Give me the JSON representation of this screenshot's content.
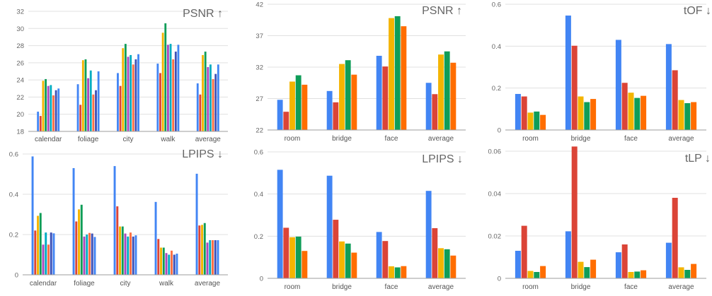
{
  "colors": {
    "c1": "#4285F4",
    "c2": "#DB4437",
    "c3": "#F4B400",
    "c4": "#0F9D58",
    "c5": "#AB47BC",
    "c6": "#00ACC1",
    "c7": "#FF7043",
    "c8": "#3F51B5",
    "axis": "#9e9e9e",
    "grid": "#e0e0e0"
  },
  "chart_data": [
    {
      "type": "bar",
      "title": "PSNR ↑",
      "categories": [
        "calendar",
        "foliage",
        "city",
        "walk",
        "average"
      ],
      "ylim": [
        18,
        32
      ],
      "yticks": [
        "18",
        "20",
        "22",
        "24",
        "26",
        "28",
        "30",
        "32"
      ],
      "grid": true,
      "legend": "none",
      "bar_colors": [
        "#4285F4",
        "#DB4437",
        "#F4B400",
        "#0F9D58",
        "#AB47BC",
        "#00ACC1",
        "#FF7043",
        "#3F51B5"
      ],
      "series": [
        {
          "values": [
            20.3,
            23.5,
            24.8,
            25.9,
            23.6
          ]
        },
        {
          "values": [
            19.8,
            21.1,
            23.3,
            24.8,
            22.3
          ]
        },
        {
          "values": [
            23.9,
            26.3,
            27.7,
            29.5,
            26.9
          ]
        },
        {
          "values": [
            24.1,
            26.4,
            28.2,
            30.6,
            27.3
          ]
        },
        {
          "values": [
            23.3,
            24.2,
            26.7,
            28.1,
            25.5
          ]
        },
        {
          "values": [
            23.4,
            25.1,
            26.9,
            28.2,
            25.8
          ]
        },
        {
          "values": [
            22.2,
            22.3,
            25.8,
            26.4,
            24.1
          ]
        },
        {
          "values": [
            22.8,
            22.8,
            26.4,
            27.3,
            24.7
          ]
        },
        {
          "values": [
            23.0,
            25.0,
            27.0,
            28.1,
            25.8
          ]
        }
      ]
    },
    {
      "type": "bar",
      "title": "PSNR ↑",
      "categories": [
        "room",
        "bridge",
        "face",
        "average"
      ],
      "ylim": [
        22,
        42
      ],
      "yticks": [
        "22",
        "27",
        "32",
        "37",
        "42"
      ],
      "grid": true,
      "legend": "none",
      "bar_colors": [
        "#4285F4",
        "#DB4437",
        "#F4B400",
        "#0F9D58",
        "#FF6D00"
      ],
      "series": [
        {
          "values": [
            26.8,
            28.2,
            33.8,
            29.5
          ]
        },
        {
          "values": [
            24.9,
            26.4,
            32.1,
            27.7
          ]
        },
        {
          "values": [
            29.7,
            32.5,
            39.8,
            34.0
          ]
        },
        {
          "values": [
            30.7,
            33.1,
            40.1,
            34.5
          ]
        },
        {
          "values": [
            29.2,
            30.8,
            38.5,
            32.7
          ]
        }
      ]
    },
    {
      "type": "bar",
      "title": "tOF ↓",
      "categories": [
        "room",
        "bridge",
        "face",
        "average"
      ],
      "ylim": [
        0,
        0.6
      ],
      "yticks": [
        "0",
        "0.2",
        "0.4",
        "0.6"
      ],
      "grid": true,
      "legend": "none",
      "bar_colors": [
        "#4285F4",
        "#DB4437",
        "#F4B400",
        "#0F9D58",
        "#FF6D00"
      ],
      "series": [
        {
          "values": [
            0.172,
            0.546,
            0.43,
            0.41
          ]
        },
        {
          "values": [
            0.16,
            0.402,
            0.225,
            0.285
          ]
        },
        {
          "values": [
            0.083,
            0.16,
            0.178,
            0.143
          ]
        },
        {
          "values": [
            0.088,
            0.133,
            0.153,
            0.128
          ]
        },
        {
          "values": [
            0.072,
            0.148,
            0.163,
            0.133
          ]
        }
      ]
    },
    {
      "type": "bar",
      "title": "LPIPS ↓",
      "categories": [
        "calendar",
        "foliage",
        "city",
        "walk",
        "average"
      ],
      "ylim": [
        0,
        0.6
      ],
      "yticks": [
        "0",
        "0.2",
        "0.4",
        "0.6"
      ],
      "grid": true,
      "legend": "none",
      "bar_colors": [
        "#4285F4",
        "#DB4437",
        "#F4B400",
        "#0F9D58",
        "#AB47BC",
        "#00ACC1",
        "#FF7043",
        "#3F51B5"
      ],
      "series": [
        {
          "values": [
            0.588,
            0.53,
            0.54,
            0.362,
            0.502
          ]
        },
        {
          "values": [
            0.22,
            0.265,
            0.34,
            0.178,
            0.245
          ]
        },
        {
          "values": [
            0.293,
            0.325,
            0.24,
            0.135,
            0.248
          ]
        },
        {
          "values": [
            0.307,
            0.348,
            0.24,
            0.135,
            0.257
          ]
        },
        {
          "values": [
            0.15,
            0.19,
            0.205,
            0.108,
            0.16
          ]
        },
        {
          "values": [
            0.21,
            0.2,
            0.19,
            0.1,
            0.172
          ]
        },
        {
          "values": [
            0.15,
            0.208,
            0.21,
            0.12,
            0.172
          ]
        },
        {
          "values": [
            0.21,
            0.205,
            0.19,
            0.1,
            0.172
          ]
        },
        {
          "values": [
            0.206,
            0.188,
            0.196,
            0.105,
            0.172
          ]
        }
      ]
    },
    {
      "type": "bar",
      "title": "LPIPS ↓",
      "categories": [
        "room",
        "bridge",
        "face",
        "average"
      ],
      "ylim": [
        0,
        0.6
      ],
      "yticks": [
        "0",
        "0.2",
        "0.4",
        "0.6"
      ],
      "grid": true,
      "legend": "none",
      "bar_colors": [
        "#4285F4",
        "#DB4437",
        "#F4B400",
        "#0F9D58",
        "#FF6D00"
      ],
      "series": [
        {
          "values": [
            0.515,
            0.487,
            0.22,
            0.415
          ]
        },
        {
          "values": [
            0.24,
            0.278,
            0.177,
            0.238
          ]
        },
        {
          "values": [
            0.195,
            0.175,
            0.057,
            0.143
          ]
        },
        {
          "values": [
            0.198,
            0.165,
            0.052,
            0.138
          ]
        },
        {
          "values": [
            0.13,
            0.122,
            0.058,
            0.108
          ]
        }
      ]
    },
    {
      "type": "bar",
      "title": "tLP ↓",
      "categories": [
        "room",
        "bridge",
        "face",
        "average"
      ],
      "ylim": [
        0,
        0.06
      ],
      "yticks": [
        "0",
        "0.02",
        "0.04",
        "0.06"
      ],
      "grid": true,
      "legend": "none",
      "bar_colors": [
        "#4285F4",
        "#DB4437",
        "#F4B400",
        "#0F9D58",
        "#FF6D00"
      ],
      "series": [
        {
          "values": [
            0.013,
            0.0222,
            0.0123,
            0.0168
          ]
        },
        {
          "values": [
            0.0248,
            0.0622,
            0.016,
            0.038
          ]
        },
        {
          "values": [
            0.0035,
            0.0078,
            0.003,
            0.0052
          ]
        },
        {
          "values": [
            0.003,
            0.0053,
            0.0032,
            0.004
          ]
        },
        {
          "values": [
            0.0058,
            0.0088,
            0.0038,
            0.0068
          ]
        }
      ]
    }
  ]
}
